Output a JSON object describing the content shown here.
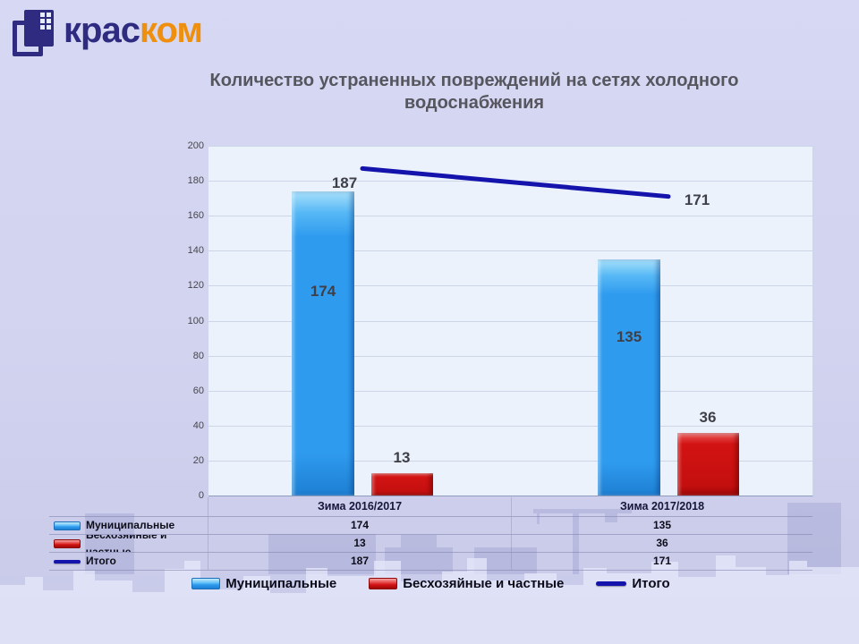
{
  "logo": {
    "icon": "overlapping-squares-mark",
    "text_primary": "крас",
    "text_secondary": "ком",
    "primary_color": "#2e2b80",
    "secondary_color": "#ef8f0e"
  },
  "title": "Количество устраненных повреждений на сетях холодного водоснабжения",
  "chart_data": {
    "type": "bar",
    "subtype": "bar-and-line-combo-with-data-table",
    "categories": [
      "Зима 2016/2017",
      "Зима 2017/2018"
    ],
    "series": [
      {
        "name": "Муниципальные",
        "type": "bar",
        "color": "#2f9bef",
        "values": [
          174,
          135
        ]
      },
      {
        "name": "Бесхозяйные и частные",
        "type": "bar",
        "color": "#d31313",
        "values": [
          13,
          36
        ]
      },
      {
        "name": "Итого",
        "type": "line",
        "color": "#1414ad",
        "values": [
          187,
          171
        ]
      }
    ],
    "ylim": [
      0,
      200
    ],
    "yticks": [
      0,
      20,
      40,
      60,
      80,
      100,
      120,
      140,
      160,
      180,
      200
    ],
    "grid": true,
    "legend_position": "bottom",
    "plot_background": "#ebf2fb",
    "page_background": "#d1d3ef"
  }
}
